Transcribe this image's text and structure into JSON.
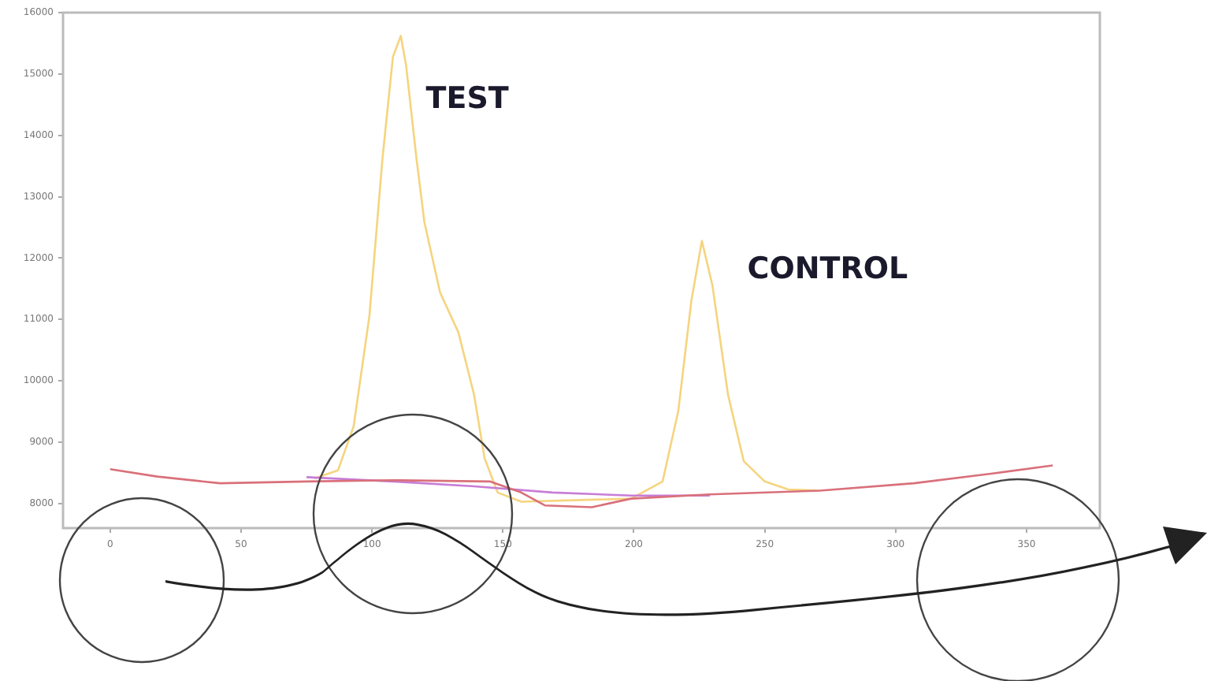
{
  "chart_data": {
    "type": "line",
    "xlim": [
      -18,
      378
    ],
    "ylim": [
      7600,
      16000
    ],
    "xticks": [
      0,
      50,
      100,
      150,
      200,
      250,
      300,
      350
    ],
    "yticks": [
      8000,
      9000,
      10000,
      11000,
      12000,
      13000,
      14000,
      15000,
      16000
    ],
    "grid": false,
    "legend": false,
    "marker": "none",
    "series": [
      {
        "color": "#d9707a",
        "x": [
          0,
          18,
          42,
          75,
          108,
          145,
          157,
          166,
          184,
          199,
          229,
          271,
          307,
          337,
          360
        ],
        "values": [
          8560,
          8440,
          8330,
          8360,
          8380,
          8360,
          8180,
          7970,
          7940,
          8080,
          8150,
          8210,
          8330,
          8490,
          8620
        ]
      },
      {
        "color": "#c77dd6",
        "x": [
          75,
          108,
          139,
          169,
          199,
          229
        ],
        "values": [
          8430,
          8360,
          8280,
          8180,
          8130,
          8130
        ]
      },
      {
        "color": "#f5d47e",
        "x": [
          78,
          87,
          93,
          99,
          104,
          108,
          111,
          113,
          117,
          120,
          126,
          133,
          139,
          143,
          148,
          157,
          199,
          211,
          217,
          222,
          226,
          230,
          236,
          242,
          250,
          259,
          271
        ],
        "values": [
          8410,
          8540,
          9260,
          11050,
          13620,
          15280,
          15620,
          15150,
          13620,
          12590,
          11440,
          10790,
          9770,
          8740,
          8180,
          8030,
          8080,
          8360,
          9510,
          11310,
          12280,
          11560,
          9770,
          8690,
          8360,
          8230,
          8210
        ]
      }
    ],
    "annotations": [
      "TEST",
      "CONTROL"
    ]
  }
}
